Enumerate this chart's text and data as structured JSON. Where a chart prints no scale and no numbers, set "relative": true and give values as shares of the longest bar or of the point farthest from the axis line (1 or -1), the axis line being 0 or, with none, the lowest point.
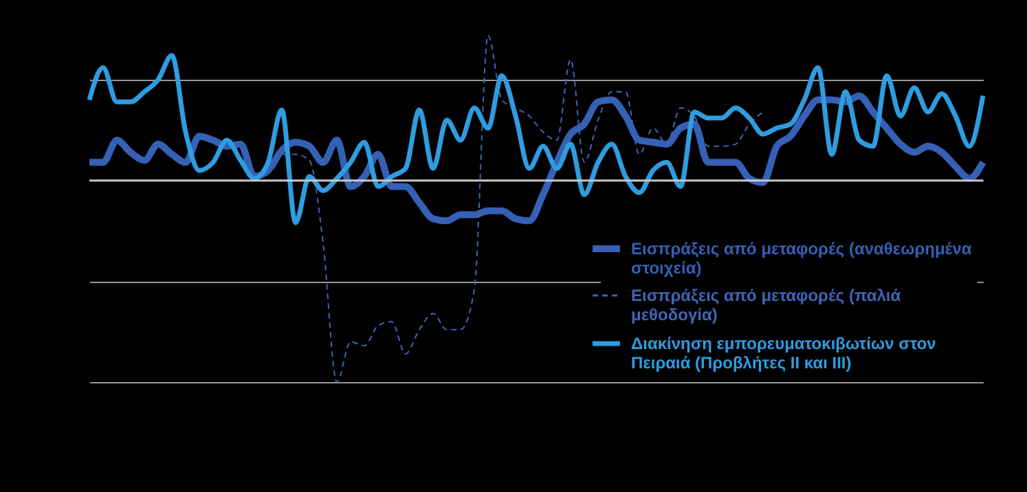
{
  "chart_data": {
    "type": "line",
    "relative": true,
    "grid": "y",
    "legend": "bottom right",
    "marker": "none",
    "categories": [
      null,
      null,
      null,
      null,
      null,
      null,
      null,
      null,
      null,
      null,
      null,
      null,
      null,
      null,
      null,
      null,
      null,
      null,
      null,
      null,
      null,
      null,
      null,
      null,
      null,
      null,
      null,
      null,
      null,
      null,
      null,
      null,
      null,
      null,
      null,
      null,
      null,
      null,
      null,
      null,
      null,
      null,
      null,
      null,
      null,
      null,
      null,
      null,
      null,
      null,
      null,
      null,
      null,
      null,
      null,
      null,
      null,
      null,
      null,
      null,
      null,
      null,
      null,
      null,
      null,
      null
    ],
    "series": [
      {
        "name": "Εισπράξεις από μεταφορές (αναθεωρημένα στοιχεία)",
        "color": "#3560b5",
        "line_style": "solid",
        "values": [
          0.09,
          0.09,
          0.2,
          0.14,
          0.1,
          0.18,
          0.13,
          0.09,
          0.22,
          0.2,
          0.17,
          0.18,
          0.02,
          0.05,
          0.15,
          0.19,
          0.17,
          0.09,
          0.2,
          -0.03,
          0.02,
          0.13,
          -0.03,
          -0.03,
          -0.11,
          -0.19,
          -0.2,
          -0.17,
          -0.17,
          -0.15,
          -0.15,
          -0.19,
          -0.2,
          -0.07,
          0.09,
          0.23,
          0.28,
          0.39,
          0.4,
          0.32,
          0.2,
          0.19,
          0.18,
          0.26,
          0.28,
          0.09,
          0.09,
          0.09,
          0.01,
          -0.01,
          0.17,
          0.22,
          0.32,
          0.4,
          0.4,
          0.39,
          0.42,
          0.34,
          0.26,
          0.18,
          0.14,
          0.17,
          0.14,
          0.07,
          0.01,
          0.09
        ]
      },
      {
        "name": "Εισπράξεις από μεταφορές (παλιά μεθοδογία)",
        "color": "#4066b5",
        "line_style": "dashed",
        "values": [
          null,
          null,
          null,
          null,
          null,
          null,
          null,
          null,
          null,
          null,
          null,
          null,
          null,
          0.07,
          0.13,
          0.13,
          0.1,
          -0.31,
          -1,
          -0.8,
          -0.82,
          -0.72,
          -0.7,
          -0.86,
          -0.74,
          -0.66,
          -0.74,
          -0.74,
          -0.54,
          0.72,
          0.4,
          0.36,
          0.32,
          0.24,
          0.2,
          0.6,
          0.09,
          0.3,
          0.44,
          0.44,
          0.13,
          0.26,
          0.18,
          0.36,
          0.32,
          0.17,
          0.17,
          0.18,
          0.28,
          0.34,
          null,
          null,
          null,
          null,
          null,
          null,
          null,
          null,
          null,
          null,
          null,
          null,
          null,
          null,
          null,
          null
        ]
      },
      {
        "name": "Διακίνηση εμπορευματοκιβωτίων στον Πειραιά (Προβλήτες ΙΙ και ΙΙΙ)",
        "color": "#2f9ce0",
        "line_style": "solid",
        "values": [
          0.4,
          0.56,
          0.39,
          0.39,
          0.44,
          0.5,
          0.62,
          0.24,
          0.05,
          0.09,
          0.2,
          0.1,
          0.01,
          0.09,
          0.35,
          -0.21,
          0.02,
          -0.05,
          0.01,
          0.09,
          0.19,
          -0.03,
          0.02,
          0.06,
          0.35,
          0.06,
          0.3,
          0.2,
          0.36,
          0.26,
          0.52,
          0.32,
          0.06,
          0.17,
          0.06,
          0.18,
          -0.07,
          0.09,
          0.18,
          0.02,
          -0.06,
          0.05,
          0.09,
          -0.03,
          0.34,
          0.31,
          0.31,
          0.36,
          0.31,
          0.23,
          0.26,
          0.28,
          0.4,
          0.56,
          0.13,
          0.44,
          0.2,
          0.17,
          0.52,
          0.32,
          0.46,
          0.34,
          0.43,
          0.32,
          0.17,
          0.42
        ]
      }
    ]
  }
}
